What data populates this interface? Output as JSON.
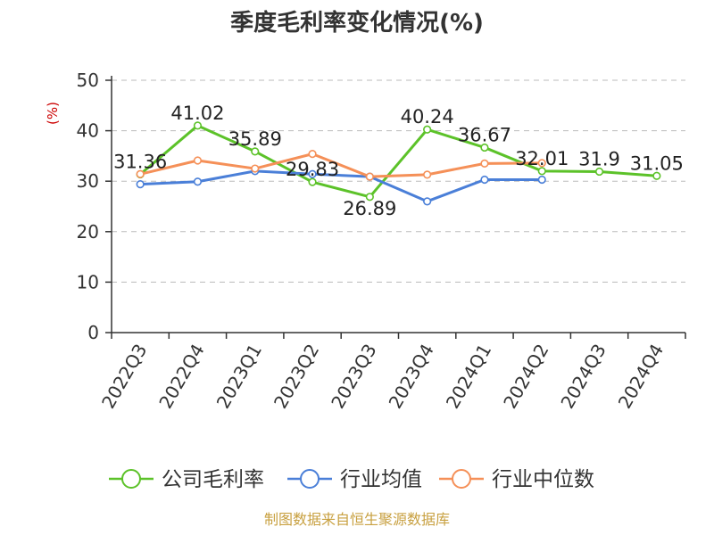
{
  "chart_data": {
    "type": "line",
    "title": "季度毛利率变化情况(%)",
    "ylabel": "(%)",
    "ylim": [
      0,
      50
    ],
    "yticks": [
      0,
      10,
      20,
      30,
      40,
      50
    ],
    "grid": "horizontal dashed",
    "legend_position": "bottom",
    "categories": [
      "2022Q3",
      "2022Q4",
      "2023Q1",
      "2023Q2",
      "2023Q3",
      "2023Q4",
      "2024Q1",
      "2024Q2",
      "2024Q3",
      "2024Q4"
    ],
    "series": [
      {
        "name": "公司毛利率",
        "color": "#5cc229",
        "values": [
          31.36,
          41.02,
          35.89,
          29.83,
          26.89,
          40.24,
          36.67,
          32.01,
          31.9,
          31.05
        ],
        "labels": [
          "31.36",
          "41.02",
          "35.89",
          "29.83",
          "26.89",
          "40.24",
          "36.67",
          "32.01",
          "31.9",
          "31.05"
        ]
      },
      {
        "name": "行业均值",
        "color": "#4a7fd8",
        "values": [
          29.4,
          29.9,
          32.0,
          31.4,
          30.9,
          26.0,
          30.3,
          30.3,
          null,
          null
        ]
      },
      {
        "name": "行业中位数",
        "color": "#f59058",
        "values": [
          31.4,
          34.1,
          32.5,
          35.4,
          30.9,
          31.3,
          33.5,
          33.6,
          null,
          null
        ]
      }
    ]
  },
  "footer": {
    "source": "制图数据来自恒生聚源数据库"
  }
}
